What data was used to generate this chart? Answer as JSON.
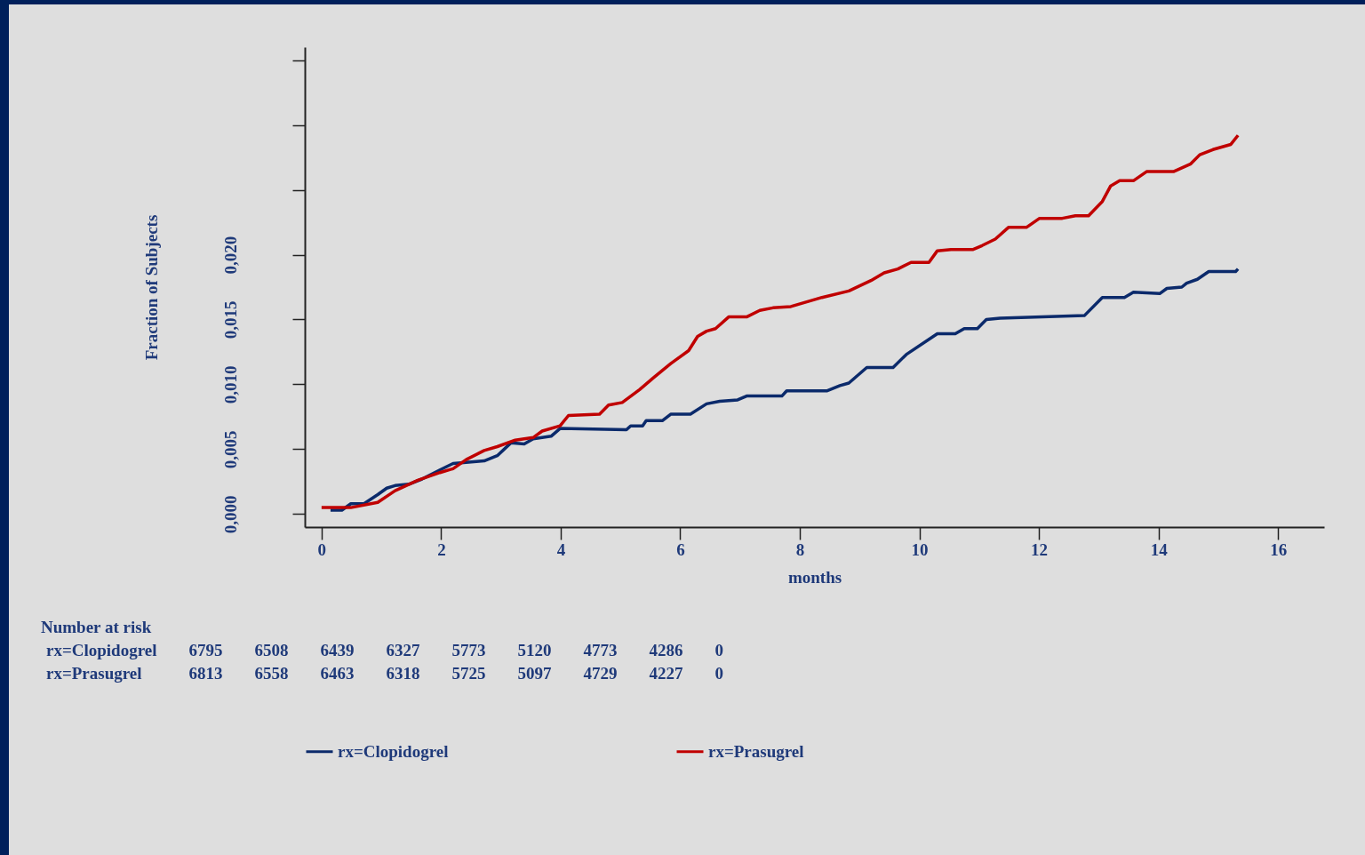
{
  "chart_data": {
    "type": "line",
    "xlabel": "months",
    "ylabel": "Fraction of Subjects",
    "xlim": [
      -0.28,
      16.77
    ],
    "xticks": [
      0,
      2,
      4,
      6,
      8,
      10,
      12,
      14,
      16
    ],
    "ylim": [
      -0.001,
      0.036
    ],
    "yticks": [
      {
        "value": 0,
        "label": "0,000"
      },
      {
        "value": 0.005,
        "label": "0,005"
      },
      {
        "value": 0.01,
        "label": "0,010"
      },
      {
        "value": 0.015,
        "label": "0,015"
      },
      {
        "value": 0.02,
        "label": "0,020"
      },
      {
        "value": 0.025,
        "label": null
      },
      {
        "value": 0.03,
        "label": null
      },
      {
        "value": 0.035,
        "label": null
      }
    ],
    "legend": "bottom",
    "marker": "none",
    "line_style": "solid",
    "series": [
      {
        "name": "rx=Clopidogrel",
        "color": "#0b2a6b",
        "x": [
          0.15,
          0.34,
          0.49,
          0.71,
          0.94,
          1.09,
          1.23,
          1.46,
          1.68,
          1.98,
          2.2,
          2.72,
          2.94,
          3.17,
          3.39,
          3.54,
          3.84,
          3.99,
          5.1,
          5.17,
          5.37,
          5.43,
          5.7,
          5.84,
          6.17,
          6.44,
          6.66,
          6.96,
          7.11,
          7.7,
          7.78,
          8.45,
          8.67,
          8.82,
          9.12,
          9.56,
          9.78,
          10.3,
          10.6,
          10.75,
          10.97,
          11.12,
          11.35,
          12.76,
          13.06,
          13.43,
          13.58,
          14.02,
          14.14,
          14.39,
          14.47,
          14.65,
          14.84,
          15.29,
          15.33
        ],
        "values": [
          0.0003,
          0.0003,
          0.0008,
          0.0008,
          0.0015,
          0.002,
          0.0022,
          0.0023,
          0.0027,
          0.0034,
          0.0039,
          0.0041,
          0.0045,
          0.0055,
          0.0054,
          0.0058,
          0.006,
          0.0066,
          0.0065,
          0.0068,
          0.0068,
          0.0072,
          0.0072,
          0.0077,
          0.0077,
          0.0085,
          0.0087,
          0.0088,
          0.0091,
          0.0091,
          0.0095,
          0.0095,
          0.0099,
          0.0101,
          0.0113,
          0.0113,
          0.0123,
          0.0139,
          0.0139,
          0.0143,
          0.0143,
          0.015,
          0.0151,
          0.0153,
          0.0167,
          0.0167,
          0.0171,
          0.017,
          0.0174,
          0.0175,
          0.0178,
          0.0181,
          0.0187,
          0.0187,
          0.0189
        ]
      },
      {
        "name": "rx=Prasugrel",
        "color": "#c00000",
        "x": [
          0,
          0.49,
          0.94,
          1.23,
          1.61,
          1.98,
          2.2,
          2.42,
          2.72,
          2.94,
          3.24,
          3.54,
          3.69,
          3.99,
          4.13,
          4.65,
          4.8,
          5.03,
          5.32,
          5.55,
          5.84,
          6.14,
          6.29,
          6.44,
          6.59,
          6.81,
          7.11,
          7.33,
          7.55,
          7.85,
          8.37,
          8.82,
          9.19,
          9.41,
          9.64,
          9.86,
          10.16,
          10.3,
          10.53,
          10.9,
          11.05,
          11.27,
          11.49,
          11.79,
          12.01,
          12.39,
          12.61,
          12.83,
          13.06,
          13.2,
          13.35,
          13.58,
          13.8,
          14.25,
          14.54,
          14.69,
          14.91,
          15.21,
          15.33
        ],
        "values": [
          0.0005,
          0.0005,
          0.0009,
          0.0018,
          0.0026,
          0.0032,
          0.0035,
          0.0042,
          0.0049,
          0.0052,
          0.0057,
          0.0059,
          0.0064,
          0.0068,
          0.0076,
          0.0077,
          0.0084,
          0.0086,
          0.0096,
          0.0105,
          0.0116,
          0.0126,
          0.0137,
          0.0141,
          0.0143,
          0.0152,
          0.0152,
          0.0157,
          0.0159,
          0.016,
          0.0167,
          0.0172,
          0.018,
          0.0186,
          0.0189,
          0.0194,
          0.0194,
          0.0203,
          0.0204,
          0.0204,
          0.0207,
          0.0212,
          0.0221,
          0.0221,
          0.0228,
          0.0228,
          0.023,
          0.023,
          0.0241,
          0.0253,
          0.0257,
          0.0257,
          0.0264,
          0.0264,
          0.027,
          0.0277,
          0.0281,
          0.0285,
          0.0292
        ]
      }
    ],
    "annotations": [
      "Number at risk",
      "rx=Clopidogrel 6795 6508 6439 6327 5773 5120 4773 4286 0",
      "rx=Prasugrel 6813 6558 6463 6318 5725 5097 4729 4227 0"
    ]
  }
}
